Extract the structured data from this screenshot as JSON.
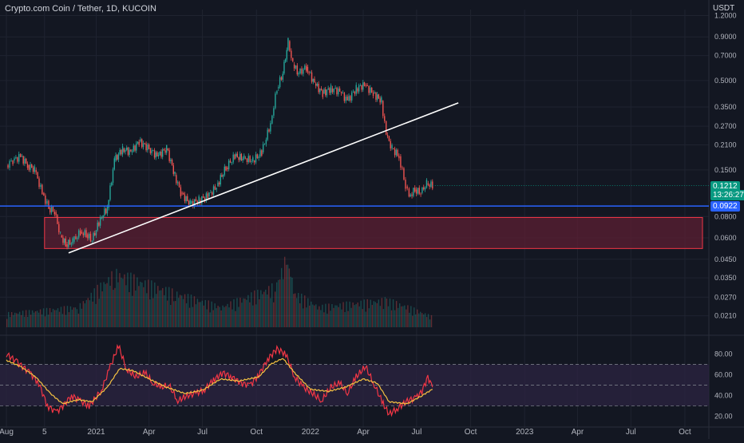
{
  "header": {
    "title": "Crypto.com Coin / Tether, 1D, KUCOIN",
    "currency": "USDT"
  },
  "price_tags": {
    "last_price": "0.1212",
    "countdown": "13:26:27",
    "hline_price": "0.0922",
    "last_color": "#089981",
    "hline_color": "#2962ff"
  },
  "colors": {
    "background": "#131722",
    "up": "#26a69a",
    "down": "#ef5350",
    "zone_fill": "#5c1f33",
    "zone_stroke": "#f23645",
    "rsi": "#f23645",
    "rsi_ma": "#f5c242",
    "rsi_band": "#2a2340"
  },
  "chart_data": [
    {
      "type": "line",
      "title": "Crypto.com Coin / Tether, 1D, KUCOIN",
      "scale": "log",
      "y_unit": "USDT",
      "ylim": [
        0.018,
        1.3
      ],
      "y_ticks": [
        "1.2000",
        "0.9000",
        "0.7000",
        "0.5000",
        "0.3500",
        "0.2700",
        "0.2100",
        "0.1500",
        "0.0800",
        "0.0600",
        "0.0450",
        "0.0350",
        "0.0270",
        "0.0210"
      ],
      "x_ticks": [
        "Aug",
        "5",
        "2021",
        "Apr",
        "Jul",
        "Oct",
        "2022",
        "Apr",
        "Jul",
        "Oct",
        "2023",
        "Apr",
        "Jul",
        "Oct"
      ],
      "x_tick_dates": [
        "2020-08-01",
        "2020-10-05",
        "2021-01-01",
        "2021-04-01",
        "2021-07-01",
        "2021-10-01",
        "2022-01-01",
        "2022-04-01",
        "2022-07-01",
        "2022-10-01",
        "2023-01-01",
        "2023-04-01",
        "2023-07-01",
        "2023-10-01"
      ],
      "grid": true,
      "close_series": [
        [
          "2020-08-01",
          0.16
        ],
        [
          "2020-08-12",
          0.17
        ],
        [
          "2020-08-25",
          0.18
        ],
        [
          "2020-09-06",
          0.16
        ],
        [
          "2020-09-18",
          0.15
        ],
        [
          "2020-10-01",
          0.11
        ],
        [
          "2020-10-12",
          0.09
        ],
        [
          "2020-10-22",
          0.085
        ],
        [
          "2020-11-01",
          0.062
        ],
        [
          "2020-11-10",
          0.055
        ],
        [
          "2020-11-22",
          0.057
        ],
        [
          "2020-12-05",
          0.065
        ],
        [
          "2020-12-15",
          0.063
        ],
        [
          "2020-12-25",
          0.058
        ],
        [
          "2021-01-08",
          0.078
        ],
        [
          "2021-01-20",
          0.09
        ],
        [
          "2021-02-01",
          0.17
        ],
        [
          "2021-02-15",
          0.2
        ],
        [
          "2021-03-01",
          0.19
        ],
        [
          "2021-03-15",
          0.22
        ],
        [
          "2021-04-01",
          0.2
        ],
        [
          "2021-04-15",
          0.18
        ],
        [
          "2021-05-01",
          0.2
        ],
        [
          "2021-05-15",
          0.14
        ],
        [
          "2021-05-25",
          0.11
        ],
        [
          "2021-06-10",
          0.095
        ],
        [
          "2021-06-25",
          0.1
        ],
        [
          "2021-07-10",
          0.105
        ],
        [
          "2021-07-25",
          0.12
        ],
        [
          "2021-08-10",
          0.155
        ],
        [
          "2021-08-25",
          0.18
        ],
        [
          "2021-09-10",
          0.175
        ],
        [
          "2021-09-25",
          0.17
        ],
        [
          "2021-10-10",
          0.19
        ],
        [
          "2021-10-25",
          0.28
        ],
        [
          "2021-11-05",
          0.45
        ],
        [
          "2021-11-15",
          0.55
        ],
        [
          "2021-11-24",
          0.85
        ],
        [
          "2021-12-02",
          0.62
        ],
        [
          "2021-12-12",
          0.55
        ],
        [
          "2021-12-25",
          0.6
        ],
        [
          "2022-01-08",
          0.48
        ],
        [
          "2022-01-22",
          0.42
        ],
        [
          "2022-02-05",
          0.45
        ],
        [
          "2022-02-20",
          0.43
        ],
        [
          "2022-03-05",
          0.38
        ],
        [
          "2022-03-20",
          0.45
        ],
        [
          "2022-04-03",
          0.47
        ],
        [
          "2022-04-18",
          0.42
        ],
        [
          "2022-05-02",
          0.38
        ],
        [
          "2022-05-10",
          0.24
        ],
        [
          "2022-05-20",
          0.2
        ],
        [
          "2022-06-01",
          0.18
        ],
        [
          "2022-06-12",
          0.12
        ],
        [
          "2022-06-18",
          0.105
        ],
        [
          "2022-06-28",
          0.115
        ],
        [
          "2022-07-08",
          0.11
        ],
        [
          "2022-07-18",
          0.125
        ],
        [
          "2022-07-28",
          0.1212
        ]
      ],
      "volume_series": [
        [
          "2020-08-01",
          2
        ],
        [
          "2020-12-01",
          3
        ],
        [
          "2021-02-01",
          8
        ],
        [
          "2021-05-15",
          5
        ],
        [
          "2021-08-01",
          3
        ],
        [
          "2021-11-01",
          6
        ],
        [
          "2021-11-20",
          10
        ],
        [
          "2021-11-25",
          9
        ],
        [
          "2021-12-05",
          5
        ],
        [
          "2022-01-15",
          3
        ],
        [
          "2022-05-10",
          4
        ],
        [
          "2022-06-15",
          3
        ],
        [
          "2022-07-28",
          1.5
        ]
      ],
      "horizontal_line": 0.0922,
      "trendline": [
        [
          "2020-11-15",
          0.049
        ],
        [
          "2022-09-10",
          0.37
        ]
      ],
      "zone": {
        "from": "2020-10-05",
        "to": "2023-10-31",
        "low": 0.052,
        "high": 0.079
      }
    },
    {
      "type": "line",
      "title": "",
      "ylim": [
        15,
        92
      ],
      "y_ticks": [
        "80.00",
        "60.00",
        "40.00",
        "20.00"
      ],
      "band": [
        30,
        70
      ],
      "midline": 50,
      "series": [
        {
          "values": [
            [
              "2020-08-01",
              80
            ],
            [
              "2020-08-20",
              72
            ],
            [
              "2020-09-10",
              62
            ],
            [
              "2020-09-25",
              52
            ],
            [
              "2020-10-10",
              30
            ],
            [
              "2020-10-25",
              24
            ],
            [
              "2020-11-05",
              30
            ],
            [
              "2020-11-20",
              40
            ],
            [
              "2020-12-05",
              35
            ],
            [
              "2020-12-20",
              30
            ],
            [
              "2021-01-10",
              45
            ],
            [
              "2021-01-25",
              68
            ],
            [
              "2021-02-08",
              88
            ],
            [
              "2021-02-22",
              65
            ],
            [
              "2021-03-10",
              58
            ],
            [
              "2021-03-25",
              62
            ],
            [
              "2021-04-08",
              52
            ],
            [
              "2021-04-22",
              48
            ],
            [
              "2021-05-05",
              50
            ],
            [
              "2021-05-20",
              35
            ],
            [
              "2021-06-05",
              40
            ],
            [
              "2021-06-20",
              42
            ],
            [
              "2021-07-05",
              46
            ],
            [
              "2021-07-20",
              55
            ],
            [
              "2021-08-05",
              62
            ],
            [
              "2021-08-20",
              58
            ],
            [
              "2021-09-05",
              52
            ],
            [
              "2021-09-20",
              50
            ],
            [
              "2021-10-05",
              60
            ],
            [
              "2021-10-20",
              75
            ],
            [
              "2021-11-05",
              85
            ],
            [
              "2021-11-20",
              80
            ],
            [
              "2021-12-05",
              58
            ],
            [
              "2021-12-20",
              48
            ],
            [
              "2022-01-05",
              42
            ],
            [
              "2022-01-20",
              35
            ],
            [
              "2022-02-05",
              48
            ],
            [
              "2022-02-20",
              52
            ],
            [
              "2022-03-05",
              42
            ],
            [
              "2022-03-20",
              58
            ],
            [
              "2022-04-05",
              68
            ],
            [
              "2022-04-20",
              50
            ],
            [
              "2022-05-05",
              32
            ],
            [
              "2022-05-15",
              22
            ],
            [
              "2022-05-30",
              28
            ],
            [
              "2022-06-15",
              35
            ],
            [
              "2022-06-30",
              38
            ],
            [
              "2022-07-10",
              44
            ],
            [
              "2022-07-20",
              58
            ],
            [
              "2022-07-28",
              48
            ]
          ]
        },
        {
          "values": [
            [
              "2020-08-01",
              74
            ],
            [
              "2020-08-25",
              68
            ],
            [
              "2020-09-20",
              58
            ],
            [
              "2020-10-15",
              42
            ],
            [
              "2020-11-05",
              32
            ],
            [
              "2020-12-01",
              36
            ],
            [
              "2020-12-25",
              34
            ],
            [
              "2021-01-20",
              48
            ],
            [
              "2021-02-10",
              66
            ],
            [
              "2021-03-05",
              64
            ],
            [
              "2021-04-01",
              56
            ],
            [
              "2021-05-01",
              48
            ],
            [
              "2021-06-01",
              42
            ],
            [
              "2021-07-01",
              45
            ],
            [
              "2021-08-01",
              56
            ],
            [
              "2021-09-01",
              54
            ],
            [
              "2021-10-05",
              58
            ],
            [
              "2021-10-25",
              70
            ],
            [
              "2021-11-15",
              76
            ],
            [
              "2021-12-05",
              62
            ],
            [
              "2022-01-01",
              46
            ],
            [
              "2022-02-01",
              44
            ],
            [
              "2022-03-01",
              48
            ],
            [
              "2022-04-01",
              56
            ],
            [
              "2022-04-25",
              52
            ],
            [
              "2022-05-15",
              34
            ],
            [
              "2022-06-15",
              32
            ],
            [
              "2022-07-10",
              40
            ],
            [
              "2022-07-28",
              46
            ]
          ]
        }
      ]
    }
  ]
}
